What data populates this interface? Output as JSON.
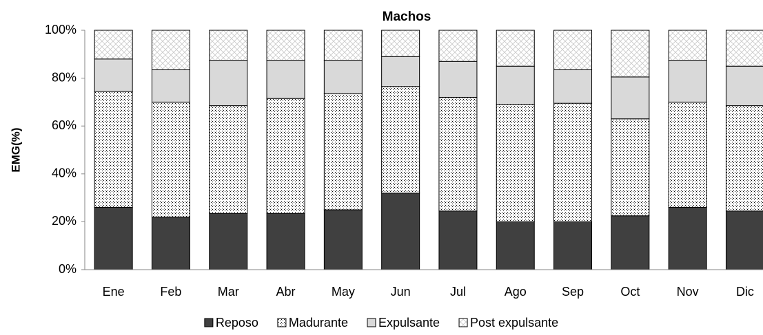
{
  "chart_data": {
    "type": "stacked_bar_100",
    "title": "Machos",
    "y_label": "EMG(%)",
    "categories": [
      "Ene",
      "Feb",
      "Mar",
      "Abr",
      "May",
      "Jun",
      "Jul",
      "Ago",
      "Sep",
      "Oct",
      "Nov",
      "Dic"
    ],
    "series": [
      {
        "name": "Reposo",
        "color": "#404040",
        "pattern": "solid",
        "values": [
          26,
          22,
          23.5,
          23.5,
          25,
          32,
          24.5,
          20,
          20,
          22.5,
          26,
          24.5
        ]
      },
      {
        "name": "Madurante",
        "color": "#ffffff",
        "pattern": "dots",
        "values": [
          48.5,
          48,
          45,
          48,
          48.5,
          44.5,
          47.5,
          49,
          49.5,
          40.5,
          44,
          44
        ]
      },
      {
        "name": "Expulsante",
        "color": "#d9d9d9",
        "pattern": "solid",
        "values": [
          13.5,
          13.5,
          19,
          16,
          14,
          12.5,
          15,
          16,
          14,
          17.5,
          17.5,
          16.5
        ]
      },
      {
        "name": "Post expulsante",
        "color": "#ffffff",
        "pattern": "crosshatch",
        "values": [
          12,
          16.5,
          12.5,
          12.5,
          12.5,
          11,
          13,
          15,
          16.5,
          19.5,
          12.5,
          15
        ]
      }
    ],
    "ylim": [
      0,
      100
    ],
    "yticks": [
      {
        "value": 0,
        "label": "0%"
      },
      {
        "value": 20,
        "label": "20%"
      },
      {
        "value": 40,
        "label": "40%"
      },
      {
        "value": 60,
        "label": "60%"
      },
      {
        "value": 80,
        "label": "80%"
      },
      {
        "value": 100,
        "label": "100%"
      }
    ],
    "legend": "bottom"
  }
}
